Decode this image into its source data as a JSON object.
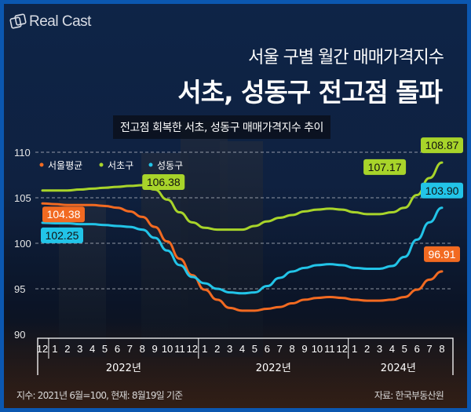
{
  "brand": {
    "logo_text": "Real Cast"
  },
  "header": {
    "title_line1": "서울 구별 월간 매매가격지수",
    "title_line2": "서초, 성동구 전고점 돌파",
    "subtitle": "전고점 회복한 서초, 성동구 매매가격지수 추이"
  },
  "footer": {
    "note": "지수: 2021년 6월=100, 현재: 8월19일 기준",
    "source": "자료: 한국부동산원"
  },
  "chart_data": {
    "type": "line",
    "title": "전고점 회복한 서초, 성동구 매매가격지수 추이",
    "xlabel": "",
    "ylabel": "",
    "ylim": [
      90,
      110
    ],
    "yticks": [
      "90",
      "95",
      "100",
      "105",
      "110"
    ],
    "grid": true,
    "legend_position": "top-left",
    "x": [
      "12",
      "1",
      "2",
      "3",
      "4",
      "5",
      "6",
      "7",
      "8",
      "9",
      "10",
      "11",
      "12",
      "1",
      "2",
      "3",
      "4",
      "5",
      "6",
      "7",
      "8",
      "9",
      "10",
      "11",
      "12",
      "1",
      "2",
      "3",
      "4",
      "5",
      "6",
      "7",
      "8"
    ],
    "year_groups": [
      {
        "label": "2022년",
        "from": 1,
        "to": 12
      },
      {
        "label": "2022년",
        "from": 13,
        "to": 24
      },
      {
        "label": "2024년",
        "from": 25,
        "to": 32
      }
    ],
    "series": [
      {
        "name": "서울평균",
        "color": "#f26a21",
        "values": [
          104.38,
          104.3,
          104.2,
          104.2,
          104.2,
          104.1,
          103.9,
          103.5,
          102.9,
          101.8,
          100.2,
          98.3,
          96.5,
          94.9,
          93.8,
          92.9,
          92.6,
          92.6,
          92.8,
          93.0,
          93.4,
          93.8,
          94.0,
          94.1,
          94.0,
          93.8,
          93.7,
          93.7,
          93.8,
          94.1,
          94.9,
          96.0,
          96.91
        ],
        "labels": [
          {
            "index": 0,
            "text": "104.38"
          },
          {
            "index": 32,
            "text": "96.91"
          }
        ]
      },
      {
        "name": "서초구",
        "color": "#a8d42a",
        "values": [
          105.8,
          105.8,
          105.8,
          105.9,
          106.0,
          106.1,
          106.2,
          106.3,
          106.38,
          105.9,
          104.8,
          103.4,
          102.3,
          101.7,
          101.5,
          101.5,
          101.5,
          101.9,
          102.4,
          102.8,
          103.1,
          103.5,
          103.7,
          103.8,
          103.7,
          103.4,
          103.2,
          103.2,
          103.4,
          103.9,
          105.3,
          107.17,
          108.87
        ],
        "labels": [
          {
            "index": 8,
            "text": "106.38"
          },
          {
            "index": 31,
            "text": "107.17"
          },
          {
            "index": 32,
            "text": "108.87"
          }
        ]
      },
      {
        "name": "성동구",
        "color": "#22c4e8",
        "values": [
          102.25,
          102.2,
          102.2,
          102.1,
          102.1,
          102.0,
          101.9,
          101.8,
          101.5,
          100.6,
          99.2,
          97.6,
          96.3,
          95.6,
          95.0,
          94.6,
          94.5,
          94.6,
          95.3,
          96.2,
          96.9,
          97.3,
          97.6,
          97.7,
          97.6,
          97.3,
          97.2,
          97.2,
          97.5,
          98.5,
          100.4,
          102.3,
          103.9
        ],
        "labels": [
          {
            "index": 0,
            "text": "102.25"
          },
          {
            "index": 32,
            "text": "103.90"
          }
        ]
      }
    ]
  }
}
